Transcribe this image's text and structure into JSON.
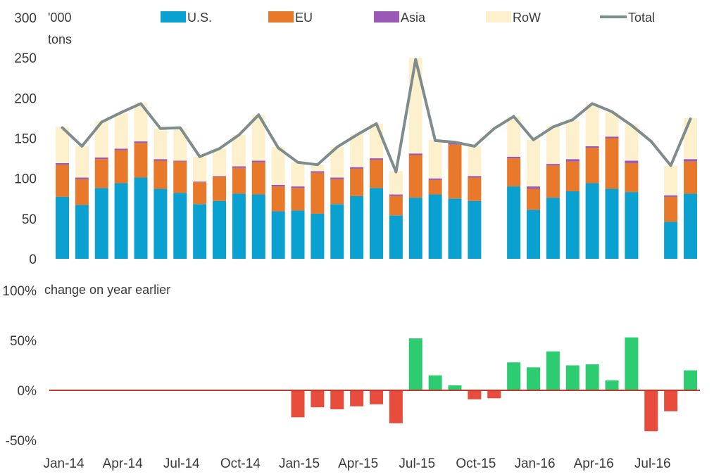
{
  "chart_data": [
    {
      "type": "bar",
      "stacked": true,
      "unit_label_line1": "'000",
      "unit_label_line2": "tons",
      "ylim": [
        0,
        300
      ],
      "yticks": [
        "0",
        "50",
        "100",
        "150",
        "200",
        "250",
        "300"
      ],
      "categories": [
        "Jan-14",
        "Feb-14",
        "Mar-14",
        "Apr-14",
        "May-14",
        "Jun-14",
        "Jul-14",
        "Aug-14",
        "Sep-14",
        "Oct-14",
        "Nov-14",
        "Dec-14",
        "Jan-15",
        "Feb-15",
        "Mar-15",
        "Apr-15",
        "May-15",
        "Jun-15",
        "Jul-15",
        "Aug-15",
        "Sep-15",
        "Oct-15",
        "Nov-15",
        "Dec-15",
        "Jan-16",
        "Feb-16",
        "Mar-16",
        "Apr-16",
        "May-16",
        "Jun-16",
        "Jul-16",
        "Aug-16",
        "Sep-16"
      ],
      "series": [
        {
          "name": "U.S.",
          "color": "#0aa0cf",
          "values": [
            77,
            67,
            88,
            94,
            101,
            87,
            82,
            68,
            72,
            81,
            80,
            59,
            60,
            56,
            68,
            78,
            88,
            54,
            76,
            80,
            75,
            72,
            null,
            90,
            61,
            76,
            84,
            94,
            87,
            83,
            null,
            46,
            81
          ]
        },
        {
          "name": "EU",
          "color": "#e8782a",
          "values": [
            40,
            32,
            36,
            41,
            43,
            35,
            39,
            27,
            30,
            32,
            40,
            31,
            28,
            51,
            31,
            34,
            35,
            24,
            53,
            18,
            67,
            29,
            null,
            35,
            26,
            40,
            37,
            44,
            63,
            36,
            null,
            31,
            40
          ]
        },
        {
          "name": "Asia",
          "color": "#9b59b6",
          "values": [
            2,
            2,
            2,
            2,
            2,
            2,
            1,
            1,
            1,
            2,
            2,
            2,
            2,
            2,
            2,
            2,
            2,
            2,
            2,
            2,
            2,
            2,
            null,
            2,
            3,
            2,
            3,
            2,
            2,
            3,
            null,
            2,
            3
          ]
        },
        {
          "name": "RoW",
          "color": "#fdf1cd",
          "values": [
            45,
            39,
            45,
            44,
            48,
            38,
            40,
            31,
            34,
            39,
            57,
            47,
            30,
            8,
            38,
            41,
            43,
            29,
            119,
            48,
            1,
            37,
            null,
            50,
            58,
            47,
            48,
            53,
            30,
            45,
            null,
            37,
            51
          ]
        },
        {
          "name": "Total",
          "color": "#7f8c8d",
          "type": "line",
          "values": [
            163,
            140,
            170,
            182,
            193,
            162,
            163,
            127,
            137,
            154,
            179,
            138,
            120,
            117,
            139,
            154,
            168,
            108,
            248,
            147,
            145,
            140,
            162,
            177,
            148,
            164,
            173,
            193,
            183,
            166,
            146,
            116,
            174
          ]
        }
      ]
    },
    {
      "type": "bar",
      "ylabel": "change on year earlier",
      "ylim": [
        -50,
        100
      ],
      "yticks": [
        "-50%",
        "0%",
        "50%",
        "100%"
      ],
      "x_tick_labels": [
        "Jan-14",
        "Apr-14",
        "Jul-14",
        "Oct-14",
        "Jan-15",
        "Apr-15",
        "Jul-15",
        "Oct-15",
        "Jan-16",
        "Apr-16",
        "Jul-16"
      ],
      "positive_color": "#2ecc71",
      "negative_color": "#e74c3c",
      "zero_line_color": "#c0392b",
      "values": [
        null,
        null,
        null,
        null,
        null,
        null,
        null,
        null,
        null,
        null,
        null,
        null,
        -27,
        -17,
        -19,
        -16,
        -14,
        -33,
        52,
        15,
        5,
        -9,
        -8,
        28,
        23,
        39,
        25,
        26,
        10,
        53,
        -41,
        -21,
        20
      ]
    }
  ],
  "icons": {
    "legend_swatch": "square-swatch",
    "legend_line": "line-swatch"
  }
}
